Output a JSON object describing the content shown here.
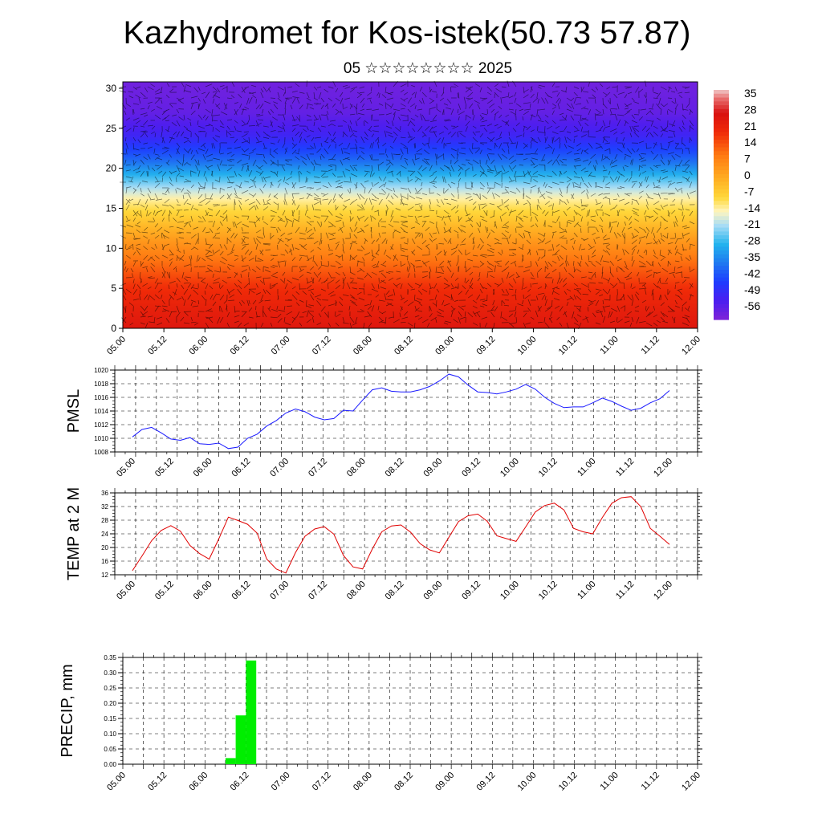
{
  "figure": {
    "title": "Kazhydromet for Kos-istek(50.73 57.87)",
    "subtitle": "05 ☆☆☆☆☆☆☆☆ 2025"
  },
  "colors": {
    "pmsl": "#1a1aff",
    "temp": "#e00000",
    "precip": "#00ee00",
    "axis": "#000000",
    "grid": "#000000"
  },
  "chart_data": [
    {
      "type": "heatmap",
      "title": "",
      "xlabel": "",
      "ylabel": "",
      "xticks": [
        "05.00",
        "05.12",
        "06.00",
        "06.12",
        "07.00",
        "07.12",
        "08.00",
        "08.12",
        "09.00",
        "09.12",
        "10.00",
        "10.12",
        "11.00",
        "11.12",
        "12.00"
      ],
      "yticks": [
        0,
        5,
        10,
        15,
        20,
        25,
        30
      ],
      "ylim": [
        0,
        30.8
      ],
      "colorbar_labels": [
        "35",
        "28",
        "21",
        "14",
        "7",
        "0",
        "-7",
        "-14",
        "-21",
        "-28",
        "-35",
        "-42",
        "-49",
        "-56"
      ],
      "colorbar_range": [
        -60,
        38
      ],
      "temperature_profile": [
        {
          "level": 0,
          "value": 26
        },
        {
          "level": 5,
          "value": 20
        },
        {
          "level": 8,
          "value": 12
        },
        {
          "level": 11,
          "value": 4
        },
        {
          "level": 14,
          "value": -6
        },
        {
          "level": 16,
          "value": -12
        },
        {
          "level": 18,
          "value": -22
        },
        {
          "level": 21,
          "value": -38
        },
        {
          "level": 24,
          "value": -50
        },
        {
          "level": 27,
          "value": -56
        },
        {
          "level": 30.8,
          "value": -58
        }
      ],
      "overlay": "wind barbs"
    },
    {
      "type": "line",
      "ylabel": "PMSL",
      "ylim": [
        1008,
        1020
      ],
      "yticks": [
        1008,
        1010,
        1012,
        1014,
        1016,
        1018,
        1020
      ],
      "xticks": [
        "05.00",
        "05.12",
        "06.00",
        "06.12",
        "07.00",
        "07.12",
        "08.00",
        "08.12",
        "09.00",
        "09.12",
        "10.00",
        "10.12",
        "11.00",
        "11.12",
        "12.00"
      ],
      "series": [
        {
          "x": [
            0,
            3,
            6,
            9,
            12,
            15,
            18,
            21,
            24,
            27,
            30,
            33,
            36,
            39,
            42,
            45,
            48,
            51,
            54,
            57,
            60,
            63,
            66,
            69,
            72,
            75,
            78,
            81,
            84,
            87,
            90,
            93,
            96,
            99,
            102,
            105,
            108,
            111,
            114,
            117,
            120,
            123,
            126,
            129,
            132,
            135,
            138,
            141,
            144,
            147,
            150,
            153,
            156,
            159,
            162,
            165,
            168
          ],
          "values": [
            1010.2,
            1011.3,
            1011.6,
            1010.8,
            1009.9,
            1009.7,
            1010.1,
            1009.2,
            1009.1,
            1009.3,
            1008.5,
            1008.7,
            1010.0,
            1010.6,
            1011.8,
            1012.6,
            1013.7,
            1014.3,
            1013.9,
            1013.1,
            1012.7,
            1012.9,
            1014.1,
            1014.0,
            1015.6,
            1017.1,
            1017.4,
            1016.9,
            1016.8,
            1016.8,
            1017.1,
            1017.6,
            1018.4,
            1019.4,
            1019.0,
            1017.8,
            1016.8,
            1016.7,
            1016.5,
            1016.8,
            1017.2,
            1017.9,
            1017.2,
            1016.0,
            1015.1,
            1014.5,
            1014.6,
            1014.6,
            1015.2,
            1015.9,
            1015.4,
            1014.7,
            1014.1,
            1014.4,
            1015.2,
            1015.8,
            1017.0
          ]
        }
      ]
    },
    {
      "type": "line",
      "ylabel": "TEMP at 2 M",
      "ylim": [
        12,
        36
      ],
      "yticks": [
        12,
        16,
        20,
        24,
        28,
        32,
        36
      ],
      "xticks": [
        "05.00",
        "05.12",
        "06.00",
        "06.12",
        "07.00",
        "07.12",
        "08.00",
        "08.12",
        "09.00",
        "09.12",
        "10.00",
        "10.12",
        "11.00",
        "11.12",
        "12.00"
      ],
      "series": [
        {
          "x": [
            0,
            3,
            6,
            9,
            12,
            15,
            18,
            21,
            24,
            27,
            30,
            33,
            36,
            39,
            42,
            45,
            48,
            51,
            54,
            57,
            60,
            63,
            66,
            69,
            72,
            75,
            78,
            81,
            84,
            87,
            90,
            93,
            96,
            99,
            102,
            105,
            108,
            111,
            114,
            117,
            120,
            123,
            126,
            129,
            132,
            135,
            138,
            141,
            144,
            147,
            150,
            153,
            156,
            159,
            162,
            165,
            168
          ],
          "values": [
            13.2,
            17.5,
            22.0,
            25.0,
            26.4,
            24.8,
            20.6,
            18.2,
            16.6,
            22.5,
            28.9,
            27.9,
            26.8,
            24.2,
            16.6,
            13.7,
            12.5,
            18.5,
            23.3,
            25.4,
            26.1,
            23.9,
            17.7,
            14.3,
            13.7,
            19.5,
            24.6,
            26.3,
            26.6,
            24.5,
            21.1,
            19.3,
            18.4,
            23.0,
            27.6,
            29.3,
            29.8,
            27.7,
            23.4,
            22.6,
            21.8,
            26.0,
            30.4,
            32.3,
            33.0,
            31.0,
            25.6,
            24.6,
            24.0,
            28.8,
            33.0,
            34.6,
            34.9,
            32.0,
            25.6,
            23.3,
            20.9
          ]
        }
      ]
    },
    {
      "type": "bar",
      "ylabel": "PRECIP, mm",
      "ylim": [
        0,
        0.35
      ],
      "yticks": [
        "0.00",
        "0.05",
        "0.10",
        "0.15",
        "0.20",
        "0.25",
        "0.30",
        "0.35"
      ],
      "xticks": [
        "05.00",
        "05.12",
        "06.00",
        "06.12",
        "07.00",
        "07.12",
        "08.00",
        "08.12",
        "09.00",
        "09.12",
        "10.00",
        "10.12",
        "11.00",
        "11.12",
        "12.00"
      ],
      "bars": [
        {
          "start": 30,
          "end": 33,
          "value": 0.02
        },
        {
          "start": 33,
          "end": 36,
          "value": 0.16
        },
        {
          "start": 36,
          "end": 39,
          "value": 0.34
        }
      ]
    }
  ]
}
